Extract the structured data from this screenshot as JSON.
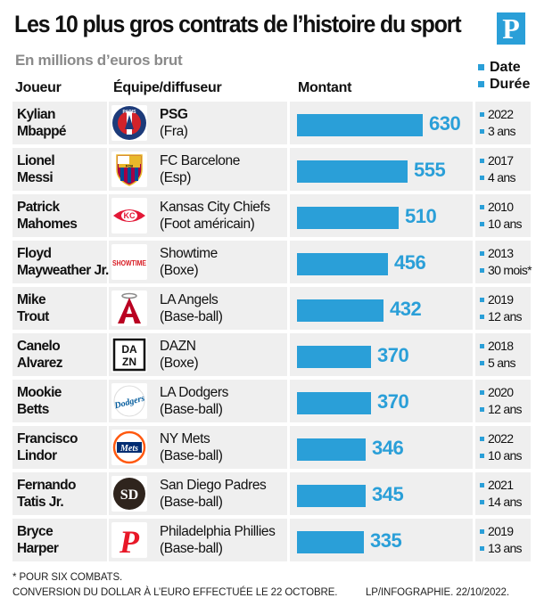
{
  "header": {
    "title": "Les 10 plus gros contrats de l’histoire du sport",
    "logo_letter": "P",
    "subtitle": "En millions d’euros brut",
    "col_player": "Joueur",
    "col_team": "Équipe/diffuseur",
    "col_amount": "Montant",
    "legend_date": "Date",
    "legend_duration": "Durée"
  },
  "colors": {
    "accent": "#2a9fd8",
    "row_bg": "#efefef"
  },
  "chart_data": {
    "type": "bar",
    "title": "Les 10 plus gros contrats de l’histoire du sport",
    "subtitle": "En millions d’euros brut",
    "xlabel": "Montant",
    "xlim": [
      0,
      630
    ],
    "rows": [
      {
        "player": [
          "Kylian",
          "Mbappé"
        ],
        "team": "PSG",
        "team_bold": true,
        "sub": "(Fra)",
        "value": 630,
        "date": "2022",
        "duration": "3 ans",
        "icon": "psg-logo-icon"
      },
      {
        "player": [
          "Lionel",
          "Messi"
        ],
        "team": "FC Barcelone",
        "team_bold": false,
        "sub": "(Esp)",
        "value": 555,
        "date": "2017",
        "duration": "4 ans",
        "icon": "barcelona-logo-icon"
      },
      {
        "player": [
          "Patrick",
          "Mahomes"
        ],
        "team": "Kansas City Chiefs",
        "team_bold": false,
        "sub": "(Foot américain)",
        "value": 510,
        "date": "2010",
        "duration": "10 ans",
        "icon": "chiefs-logo-icon"
      },
      {
        "player": [
          "Floyd",
          "Mayweather Jr."
        ],
        "team": "Showtime",
        "team_bold": false,
        "sub": "(Boxe)",
        "value": 456,
        "date": "2013",
        "duration": "30 mois*",
        "icon": "showtime-logo-icon"
      },
      {
        "player": [
          "Mike",
          "Trout"
        ],
        "team": "LA Angels",
        "team_bold": false,
        "sub": "(Base-ball)",
        "value": 432,
        "date": "2019",
        "duration": "12 ans",
        "icon": "angels-logo-icon"
      },
      {
        "player": [
          "Canelo",
          "Alvarez"
        ],
        "team": "DAZN",
        "team_bold": false,
        "sub": "(Boxe)",
        "value": 370,
        "date": "2018",
        "duration": "5 ans",
        "icon": "dazn-logo-icon"
      },
      {
        "player": [
          "Mookie",
          "Betts"
        ],
        "team": "LA Dodgers",
        "team_bold": false,
        "sub": "(Base-ball)",
        "value": 370,
        "date": "2020",
        "duration": "12 ans",
        "icon": "dodgers-logo-icon"
      },
      {
        "player": [
          "Francisco",
          "Lindor"
        ],
        "team": "NY Mets",
        "team_bold": false,
        "sub": "(Base-ball)",
        "value": 346,
        "date": "2022",
        "duration": "10 ans",
        "icon": "mets-logo-icon"
      },
      {
        "player": [
          "Fernando",
          "Tatis Jr."
        ],
        "team": "San Diego Padres",
        "team_bold": false,
        "sub": "(Base-ball)",
        "value": 345,
        "date": "2021",
        "duration": "14 ans",
        "icon": "padres-logo-icon"
      },
      {
        "player": [
          "Bryce",
          "Harper"
        ],
        "team": "Philadelphia Phillies",
        "team_bold": false,
        "sub": "(Base-ball)",
        "value": 335,
        "date": "2019",
        "duration": "13 ans",
        "icon": "phillies-logo-icon"
      }
    ]
  },
  "logos": {
    "psg_text": "PARIS",
    "barca_text": "FCB",
    "chiefs_text": "KC",
    "showtime_text": "SHOWTIME",
    "angels_text": "A",
    "dazn_text": [
      "DA",
      "ZN"
    ],
    "dodgers_text": "Dodgers",
    "mets_text": "Mets",
    "padres_text": "SD",
    "phillies_text": "P"
  },
  "footer": {
    "note": "* POUR SIX COMBATS.",
    "conversion": "CONVERSION DU DOLLAR À L’EURO EFFECTUÉE LE 22 OCTOBRE.",
    "credit": "LP/INFOGRAPHIE.  22/10/2022."
  }
}
